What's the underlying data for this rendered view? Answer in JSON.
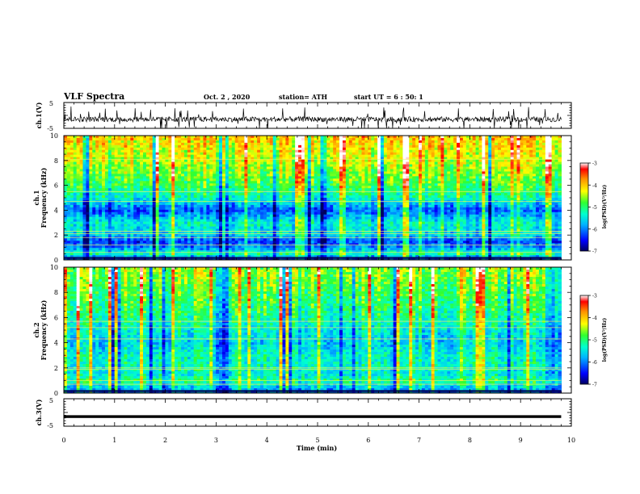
{
  "header": {
    "title": "VLF Spectra",
    "date": "Oct. 2 , 2020",
    "station": "station= ATH",
    "start": "start UT = 6 : 50: 1"
  },
  "chart_data": [
    {
      "type": "line",
      "panel": "ch1-waveform",
      "ylabel": "ch.1(V)",
      "ylim": [
        -5,
        5
      ],
      "ytick_labels": [
        "5",
        "-5"
      ],
      "xlim": [
        0,
        10
      ],
      "description_values": {
        "mean": -1.5,
        "noise_amplitude": 1.0,
        "spike_max": 5
      },
      "data_end": 9.8
    },
    {
      "type": "heatmap",
      "panel": "ch1-spectrogram",
      "ylabel_top": "ch.1",
      "ylabel": "Frequency (kHz)",
      "ylim": [
        0,
        10
      ],
      "ytick_labels": [
        "0",
        "2",
        "4",
        "6",
        "8",
        "10"
      ],
      "xlim": [
        0,
        10
      ],
      "data_end": 9.8,
      "colorbar": {
        "label": "log(PSD)(V²/Hz)",
        "range": [
          -7,
          -3
        ],
        "tick_labels": [
          "-3",
          "-4",
          "-5",
          "-6",
          "-7"
        ]
      },
      "levels_by_freq": [
        {
          "f": 10,
          "level": -4.0
        },
        {
          "f": 8,
          "level": -4.4
        },
        {
          "f": 6,
          "level": -4.9
        },
        {
          "f": 5,
          "level": -5.3
        },
        {
          "f": 4,
          "level": -6.2
        },
        {
          "f": 3,
          "level": -5.4
        },
        {
          "f": 2,
          "level": -5.6
        },
        {
          "f": 1.5,
          "level": -6.3
        },
        {
          "f": 1,
          "level": -6.0
        },
        {
          "f": 0.5,
          "level": -5.2
        },
        {
          "f": 0,
          "level": -6.5
        }
      ],
      "horizontal_lines_khz": [
        0.6,
        1.2,
        1.8,
        2.1,
        2.3,
        4.7,
        5.5,
        8.1
      ]
    },
    {
      "type": "heatmap",
      "panel": "ch2-spectrogram",
      "ylabel_top": "ch.2",
      "ylabel": "Frequency (kHz)",
      "ylim": [
        0,
        10
      ],
      "ytick_labels": [
        "0",
        "2",
        "4",
        "6",
        "8",
        "10"
      ],
      "xlim": [
        0,
        10
      ],
      "data_end": 9.8,
      "colorbar": {
        "label": "log(PSD)(V²/Hz)",
        "range": [
          -7,
          -3
        ],
        "tick_labels": [
          "-3",
          "-4",
          "-5",
          "-6",
          "-7"
        ]
      },
      "levels_by_freq": [
        {
          "f": 10,
          "level": -4.5
        },
        {
          "f": 8,
          "level": -4.8
        },
        {
          "f": 6,
          "level": -5.1
        },
        {
          "f": 5,
          "level": -5.4
        },
        {
          "f": 4,
          "level": -5.6
        },
        {
          "f": 3,
          "level": -5.3
        },
        {
          "f": 2,
          "level": -5.3
        },
        {
          "f": 1.5,
          "level": -5.4
        },
        {
          "f": 1,
          "level": -5.0
        },
        {
          "f": 0.5,
          "level": -5.6
        },
        {
          "f": 0,
          "level": -6.0
        }
      ],
      "horizontal_lines_khz": [
        0.7,
        1.0,
        1.9,
        2.0,
        4.3,
        5.2,
        5.7
      ]
    },
    {
      "type": "line",
      "panel": "ch3-waveform",
      "ylabel": "ch.3(V)",
      "ylim": [
        -5,
        5
      ],
      "ytick_labels": [
        "5",
        "-5"
      ],
      "xlim": [
        0,
        10
      ],
      "xlabel": "Time (min)",
      "xtick_labels": [
        "0",
        "1",
        "2",
        "3",
        "4",
        "5",
        "6",
        "7",
        "8",
        "9",
        "10"
      ],
      "description_values": {
        "mean": -1.5,
        "band_width": 1.0
      },
      "data_end": 9.8
    }
  ]
}
